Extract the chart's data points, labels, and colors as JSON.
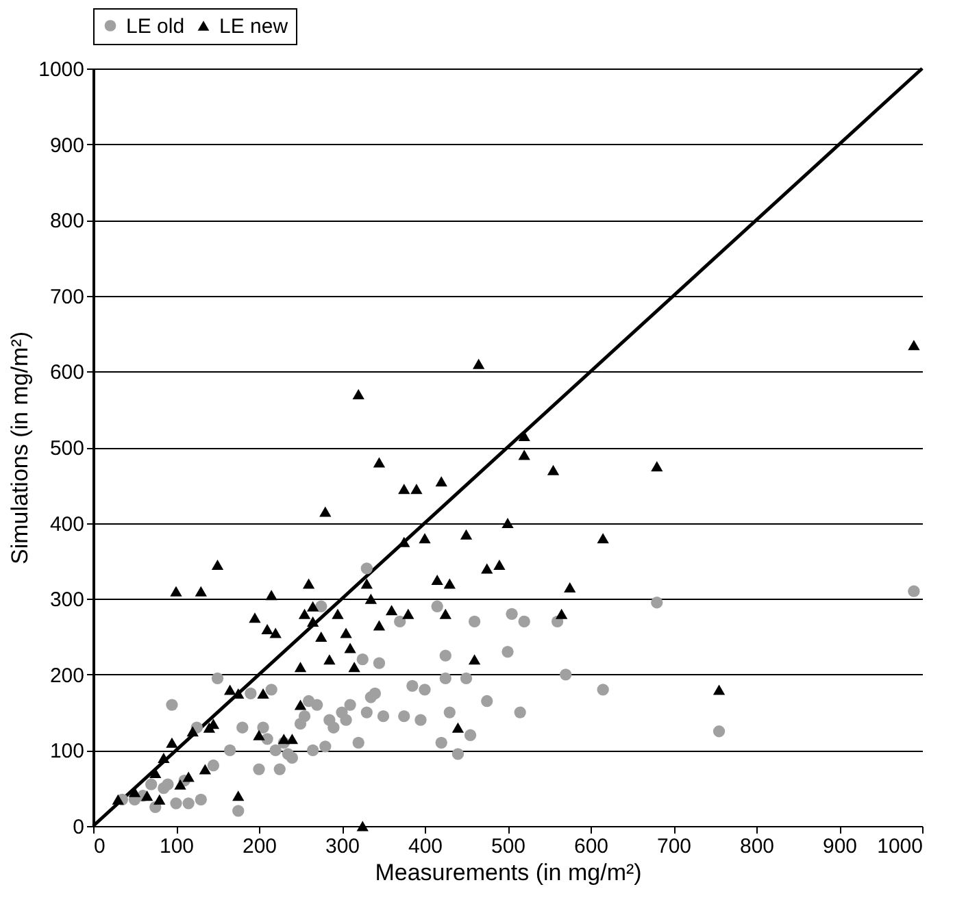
{
  "chart_data": {
    "type": "scatter",
    "xlabel": "Measurements (in mg/m²)",
    "ylabel": "Simulations (in mg/m²)",
    "xlim": [
      0,
      1000
    ],
    "ylim": [
      0,
      1000
    ],
    "xticks": [
      0,
      100,
      200,
      300,
      400,
      500,
      600,
      700,
      800,
      900,
      1000
    ],
    "yticks": [
      0,
      100,
      200,
      300,
      400,
      500,
      600,
      700,
      800,
      900,
      1000
    ],
    "grid": "y",
    "legend": "top",
    "series": [
      {
        "name": "LE old",
        "color": "#a0a0a0",
        "marker": "circle",
        "x": [
          35,
          50,
          60,
          70,
          75,
          85,
          90,
          95,
          100,
          110,
          115,
          125,
          130,
          145,
          150,
          165,
          175,
          180,
          190,
          200,
          205,
          210,
          215,
          220,
          225,
          230,
          235,
          240,
          250,
          255,
          260,
          265,
          270,
          275,
          280,
          285,
          290,
          300,
          305,
          310,
          320,
          325,
          330,
          335,
          340,
          345,
          350,
          370,
          375,
          385,
          395,
          400,
          415,
          420,
          425,
          430,
          440,
          450,
          455,
          460,
          475,
          500,
          505,
          515,
          520,
          560,
          570,
          615,
          680,
          755,
          990,
          330,
          425
        ],
        "values": [
          35,
          35,
          40,
          55,
          25,
          50,
          55,
          160,
          30,
          60,
          30,
          130,
          35,
          80,
          195,
          100,
          20,
          130,
          175,
          75,
          130,
          115,
          180,
          100,
          75,
          110,
          95,
          90,
          135,
          145,
          165,
          100,
          160,
          290,
          105,
          140,
          130,
          150,
          140,
          160,
          110,
          220,
          150,
          170,
          175,
          215,
          145,
          270,
          145,
          185,
          140,
          180,
          290,
          110,
          225,
          150,
          95,
          195,
          120,
          270,
          165,
          230,
          280,
          150,
          270,
          270,
          200,
          180,
          295,
          125,
          310,
          340,
          195
        ]
      },
      {
        "name": "LE new",
        "color": "#000000",
        "marker": "triangle",
        "x": [
          30,
          50,
          65,
          75,
          80,
          85,
          95,
          100,
          105,
          115,
          120,
          130,
          135,
          140,
          145,
          150,
          165,
          175,
          175,
          195,
          200,
          205,
          210,
          215,
          220,
          230,
          240,
          250,
          250,
          255,
          260,
          265,
          265,
          275,
          280,
          285,
          295,
          305,
          310,
          315,
          320,
          325,
          330,
          335,
          345,
          345,
          360,
          375,
          375,
          380,
          390,
          400,
          415,
          420,
          425,
          430,
          440,
          450,
          460,
          475,
          490,
          500,
          520,
          520,
          465,
          555,
          565,
          575,
          615,
          680,
          755,
          990
        ],
        "values": [
          35,
          45,
          40,
          70,
          35,
          90,
          110,
          310,
          55,
          65,
          125,
          310,
          75,
          130,
          135,
          345,
          180,
          40,
          175,
          275,
          120,
          175,
          260,
          305,
          255,
          115,
          115,
          210,
          160,
          280,
          320,
          270,
          290,
          250,
          415,
          220,
          280,
          255,
          235,
          210,
          570,
          0,
          320,
          300,
          480,
          265,
          285,
          375,
          445,
          280,
          445,
          380,
          325,
          455,
          280,
          320,
          130,
          385,
          220,
          340,
          345,
          400,
          490,
          515,
          610,
          470,
          280,
          315,
          380,
          475,
          180,
          635
        ]
      },
      {
        "type": "line",
        "color": "#000000",
        "x": [
          0,
          1000
        ],
        "values": [
          0,
          1000
        ]
      }
    ]
  }
}
